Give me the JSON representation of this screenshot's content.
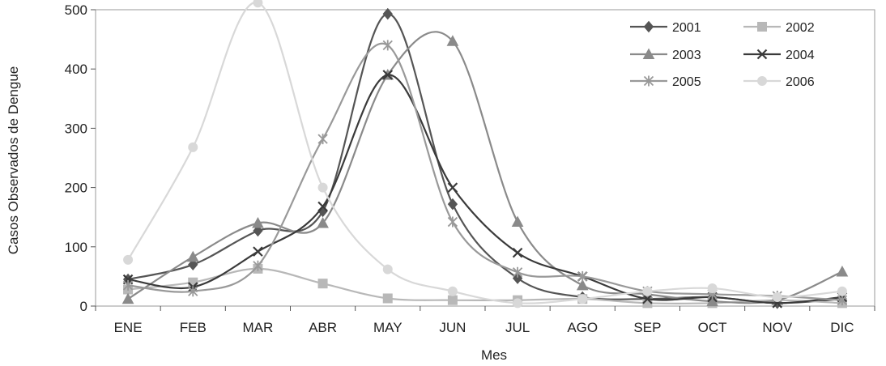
{
  "chart_data": {
    "type": "line",
    "title": "",
    "xlabel": "Mes",
    "ylabel": "Casos Observados de Dengue",
    "categories": [
      "ENE",
      "FEB",
      "MAR",
      "ABR",
      "MAY",
      "JUN",
      "JUL",
      "AGO",
      "SEP",
      "OCT",
      "NOV",
      "DIC"
    ],
    "ylim": [
      0,
      500
    ],
    "yticks": [
      "0",
      "100",
      "200",
      "300",
      "400",
      "500"
    ],
    "grid": false,
    "legend": "top-right",
    "series": [
      {
        "name": "2001",
        "color": "#555555",
        "marker": "diamond",
        "values": [
          45,
          70,
          127,
          160,
          493,
          172,
          47,
          15,
          12,
          15,
          5,
          12
        ]
      },
      {
        "name": "2002",
        "color": "#b8b8b8",
        "marker": "square",
        "values": [
          28,
          40,
          63,
          38,
          13,
          10,
          10,
          12,
          5,
          5,
          10,
          5
        ]
      },
      {
        "name": "2003",
        "color": "#8a8a8a",
        "marker": "triangle",
        "values": [
          12,
          83,
          140,
          140,
          390,
          447,
          142,
          35,
          20,
          8,
          10,
          58
        ]
      },
      {
        "name": "2004",
        "color": "#3a3a3a",
        "marker": "x",
        "values": [
          45,
          32,
          92,
          168,
          390,
          200,
          90,
          50,
          12,
          15,
          5,
          15
        ]
      },
      {
        "name": "2005",
        "color": "#999999",
        "marker": "star",
        "values": [
          35,
          25,
          68,
          282,
          440,
          142,
          57,
          50,
          25,
          20,
          17,
          10
        ]
      },
      {
        "name": "2006",
        "color": "#d8d8d8",
        "marker": "circle",
        "values": [
          78,
          268,
          512,
          200,
          62,
          25,
          5,
          12,
          25,
          30,
          15,
          25
        ]
      }
    ]
  }
}
